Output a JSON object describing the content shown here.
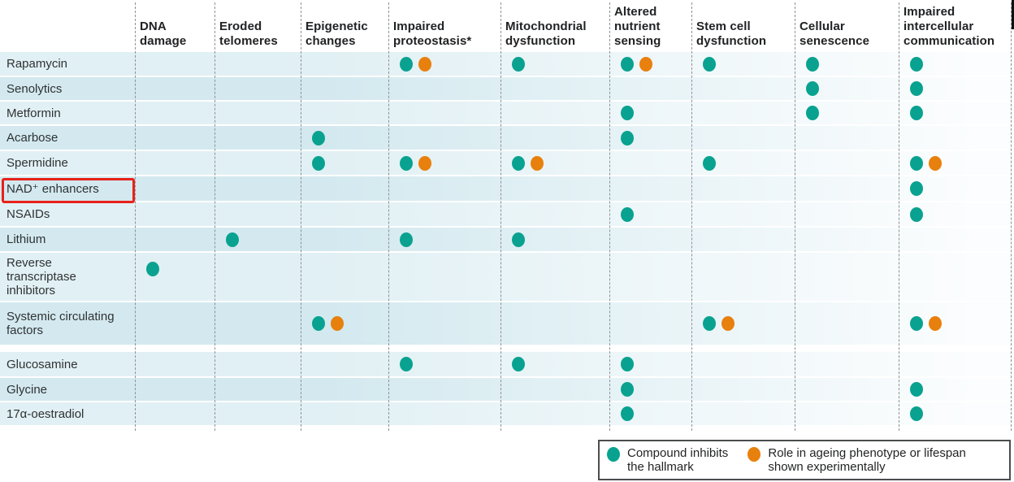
{
  "chart_data": {
    "type": "table",
    "columns": [
      "DNA damage",
      "Eroded telomeres",
      "Epigenetic changes",
      "Impaired proteostasis*",
      "Mitochondrial dysfunction",
      "Altered nutrient sensing",
      "Stem cell dysfunction",
      "Cellular senescence",
      "Impaired intercellular communication"
    ],
    "rows": [
      {
        "label": "Rapamycin",
        "highlighted": false,
        "cells": [
          "",
          "",
          "",
          "TO",
          "T",
          "TO",
          "T",
          "T",
          "T"
        ]
      },
      {
        "label": "Senolytics",
        "highlighted": false,
        "cells": [
          "",
          "",
          "",
          "",
          "",
          "",
          "",
          "T",
          "T"
        ]
      },
      {
        "label": "Metformin",
        "highlighted": false,
        "cells": [
          "",
          "",
          "",
          "",
          "",
          "T",
          "",
          "T",
          "T"
        ]
      },
      {
        "label": "Acarbose",
        "highlighted": false,
        "cells": [
          "",
          "",
          "T",
          "",
          "",
          "T",
          "",
          "",
          ""
        ]
      },
      {
        "label": "Spermidine",
        "highlighted": false,
        "cells": [
          "",
          "",
          "T",
          "TO",
          "TO",
          "",
          "T",
          "",
          "TO"
        ]
      },
      {
        "label": "NAD⁺ enhancers",
        "highlighted": true,
        "cells": [
          "",
          "",
          "",
          "",
          "",
          "",
          "",
          "",
          "T"
        ]
      },
      {
        "label": "NSAIDs",
        "highlighted": false,
        "cells": [
          "",
          "",
          "",
          "",
          "",
          "T",
          "",
          "",
          "T"
        ]
      },
      {
        "label": "Lithium",
        "highlighted": false,
        "cells": [
          "",
          "T",
          "",
          "T",
          "T",
          "",
          "",
          "",
          ""
        ]
      },
      {
        "label": "Reverse transcriptase inhibitors",
        "highlighted": false,
        "cells": [
          "T",
          "",
          "",
          "",
          "",
          "",
          "",
          "",
          ""
        ]
      },
      {
        "label": "Systemic circulating factors",
        "highlighted": false,
        "cells": [
          "",
          "",
          "TO",
          "",
          "",
          "",
          "TO",
          "",
          "TO"
        ]
      },
      {
        "label": "Glucosamine",
        "highlighted": false,
        "cells": [
          "",
          "",
          "",
          "T",
          "T",
          "T",
          "",
          "",
          ""
        ]
      },
      {
        "label": "Glycine",
        "highlighted": false,
        "cells": [
          "",
          "",
          "",
          "",
          "",
          "T",
          "",
          "",
          "T"
        ]
      },
      {
        "label": "17α-oestradiol",
        "highlighted": false,
        "cells": [
          "",
          "",
          "",
          "",
          "",
          "T",
          "",
          "",
          "T"
        ]
      }
    ],
    "cell_code_key": {
      "T": "teal dot only",
      "TO": "teal dot plus orange dot"
    },
    "legend": [
      {
        "symbol": "teal-dot",
        "label": "Compound inhibits the hallmark"
      },
      {
        "symbol": "orange-dot",
        "label": "Role in ageing phenotype or lifespan shown experimentally"
      }
    ]
  },
  "annotation": {
    "shape": "red-box",
    "highlighted_row": "NAD⁺ enhancers"
  },
  "colors": {
    "teal": "#09a290",
    "orange": "#e8800d",
    "annotation_red": "#e8211a",
    "row_tint_light": "#e1f0f4",
    "row_tint_dark": "#d3e9ef",
    "grid_dash": "#8d9194",
    "header_text": "#212224",
    "label_text": "#2f3234"
  }
}
